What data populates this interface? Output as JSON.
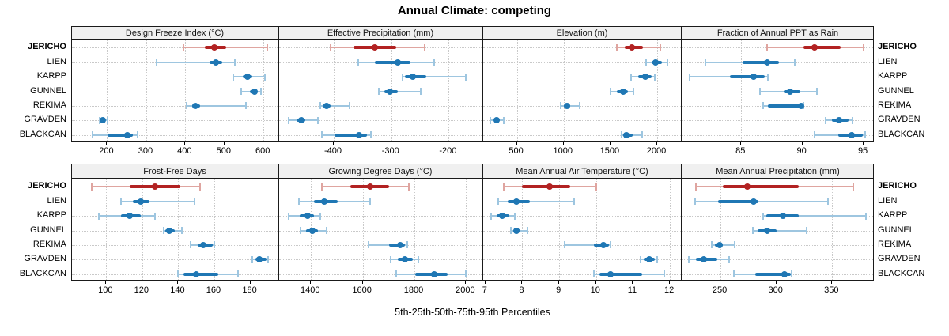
{
  "title": "Annual Climate: competing",
  "caption": "5th-25th-50th-75th-95th Percentiles",
  "sites": [
    "JERICHO",
    "LIEN",
    "KARPP",
    "GUNNEL",
    "REKIMA",
    "GRAVDEN",
    "BLACKCAN"
  ],
  "highlight_site": "JERICHO",
  "colors": {
    "highlight": "#B22222",
    "highlight_light": "#DFA5A0",
    "normal": "#1F77B4",
    "normal_light": "#9EC6E0",
    "strip_bg": "#F0F0F0",
    "panel_border": "#1A1A1A",
    "grid": "#C9C9C9"
  },
  "chart_data": {
    "type": "dotplot",
    "subtype": "percentile-intervals",
    "percentiles": [
      5,
      25,
      50,
      75,
      95
    ],
    "legend_position": "none",
    "grid": "dotted",
    "panels": [
      {
        "title": "Design Freeze Index (°C)",
        "row": 0,
        "col": 0,
        "ticks": [
          200,
          300,
          400,
          500,
          600
        ],
        "domain": [
          110,
          640
        ],
        "series": {
          "JERICHO": [
            395,
            450,
            475,
            505,
            610
          ],
          "LIEN": [
            327,
            461,
            478,
            495,
            527
          ],
          "KARPP": [
            522,
            546,
            559,
            572,
            603
          ],
          "GUNNEL": [
            542,
            566,
            577,
            586,
            593
          ],
          "REKIMA": [
            404,
            418,
            426,
            438,
            555
          ],
          "GRAVDEN": [
            181,
            185,
            189,
            193,
            201
          ],
          "BLACKCAN": [
            162,
            202,
            251,
            266,
            278
          ]
        }
      },
      {
        "title": "Effective Precipitation (mm)",
        "row": 0,
        "col": 1,
        "ticks": [
          -400,
          -300,
          -200
        ],
        "domain": [
          -495,
          -140
        ],
        "series": {
          "JERICHO": [
            -405,
            -365,
            -329,
            -291,
            -242
          ],
          "LIEN": [
            -358,
            -328,
            -288,
            -267,
            -225
          ],
          "KARPP": [
            -281,
            -276,
            -262,
            -239,
            -170
          ],
          "GUNNEL": [
            -321,
            -312,
            -302,
            -288,
            -249
          ],
          "REKIMA": [
            -423,
            -419,
            -413,
            -405,
            -372
          ],
          "GRAVDEN": [
            -479,
            -465,
            -457,
            -449,
            -428
          ],
          "BLACKCAN": [
            -421,
            -398,
            -356,
            -342,
            -335
          ]
        }
      },
      {
        "title": "Elevation (m)",
        "row": 0,
        "col": 2,
        "ticks": [
          500,
          1000,
          1500,
          2000
        ],
        "domain": [
          140,
          2270
        ],
        "series": {
          "JERICHO": [
            1566,
            1650,
            1729,
            1851,
            2031
          ],
          "LIEN": [
            1880,
            1940,
            1980,
            2052,
            2108
          ],
          "KARPP": [
            1723,
            1795,
            1872,
            1937,
            1975
          ],
          "GUNNEL": [
            1500,
            1566,
            1632,
            1683,
            1743
          ],
          "REKIMA": [
            968,
            1005,
            1034,
            1069,
            1168
          ],
          "GRAVDEN": [
            220,
            258,
            286,
            320,
            357
          ],
          "BLACKCAN": [
            1623,
            1637,
            1666,
            1737,
            1838
          ]
        }
      },
      {
        "title": "Fraction of Annual PPT as Rain",
        "row": 0,
        "col": 3,
        "ticks": [
          85,
          90,
          95
        ],
        "domain": [
          80.2,
          95.9
        ],
        "series": {
          "JERICHO": [
            87.1,
            90.1,
            91.0,
            93.1,
            95.0
          ],
          "LIEN": [
            82.1,
            85.1,
            87.1,
            88.1,
            89.4
          ],
          "KARPP": [
            80.8,
            84.1,
            86.0,
            86.9,
            87.2
          ],
          "GUNNEL": [
            86.5,
            88.5,
            89.0,
            89.8,
            91.2
          ],
          "REKIMA": [
            86.8,
            87.2,
            89.9,
            90.0,
            90.1
          ],
          "GRAVDEN": [
            91.9,
            92.4,
            93.0,
            93.8,
            94.1
          ],
          "BLACKCAN": [
            91.0,
            92.9,
            94.0,
            94.9,
            95.1
          ]
        }
      },
      {
        "title": "Frost-Free Days",
        "row": 1,
        "col": 0,
        "ticks": [
          100,
          120,
          140,
          160,
          180
        ],
        "domain": [
          81,
          196
        ],
        "series": {
          "JERICHO": [
            92,
            113,
            127,
            141,
            152
          ],
          "LIEN": [
            108,
            115,
            119,
            124,
            149
          ],
          "KARPP": [
            96,
            108,
            113,
            119,
            127
          ],
          "GUNNEL": [
            132,
            133,
            135,
            138,
            142
          ],
          "REKIMA": [
            147,
            151,
            154,
            159,
            160
          ],
          "GRAVDEN": [
            181,
            183,
            185,
            189,
            190
          ],
          "BLACKCAN": [
            140,
            143,
            150,
            162,
            173
          ]
        }
      },
      {
        "title": "Growing Degree Days (°C)",
        "row": 1,
        "col": 1,
        "ticks": [
          1400,
          1600,
          1800,
          2000
        ],
        "domain": [
          1277,
          2066
        ],
        "series": {
          "JERICHO": [
            1443,
            1552,
            1629,
            1701,
            1780
          ],
          "LIEN": [
            1354,
            1412,
            1450,
            1504,
            1629
          ],
          "KARPP": [
            1314,
            1356,
            1386,
            1412,
            1436
          ],
          "GUNNEL": [
            1361,
            1381,
            1405,
            1428,
            1459
          ],
          "REKIMA": [
            1624,
            1701,
            1745,
            1763,
            1773
          ],
          "GRAVDEN": [
            1709,
            1737,
            1763,
            1794,
            1814
          ],
          "BLACKCAN": [
            1729,
            1804,
            1876,
            1928,
            1998
          ]
        }
      },
      {
        "title": "Mean Annual Air Temperature (°C)",
        "row": 1,
        "col": 2,
        "ticks": [
          7,
          8,
          9,
          10,
          11,
          12
        ],
        "domain": [
          6.94,
          12.34
        ],
        "series": {
          "JERICHO": [
            7.5,
            8.0,
            8.75,
            9.3,
            10.0
          ],
          "LIEN": [
            7.35,
            7.6,
            7.85,
            8.2,
            9.4
          ],
          "KARPP": [
            7.15,
            7.3,
            7.45,
            7.65,
            7.8
          ],
          "GUNNEL": [
            7.7,
            7.75,
            7.85,
            7.95,
            8.15
          ],
          "REKIMA": [
            9.15,
            9.95,
            10.2,
            10.35,
            10.4
          ],
          "GRAVDEN": [
            11.2,
            11.3,
            11.45,
            11.6,
            11.65
          ],
          "BLACKCAN": [
            9.95,
            10.1,
            10.4,
            11.25,
            11.85
          ]
        }
      },
      {
        "title": "Mean Annual Precipitation (mm)",
        "row": 1,
        "col": 3,
        "ticks": [
          250,
          300,
          350
        ],
        "domain": [
          216,
          388
        ],
        "series": {
          "JERICHO": [
            228,
            252,
            274,
            320,
            369
          ],
          "LIEN": [
            227,
            248,
            280,
            284,
            346
          ],
          "KARPP": [
            288,
            291,
            306,
            320,
            380
          ],
          "GUNNEL": [
            279,
            283,
            292,
            300,
            327
          ],
          "REKIMA": [
            242,
            245,
            249,
            252,
            263
          ],
          "GRAVDEN": [
            222,
            228,
            235,
            247,
            258
          ],
          "BLACKCAN": [
            262,
            281,
            307,
            313,
            314
          ]
        }
      }
    ]
  }
}
